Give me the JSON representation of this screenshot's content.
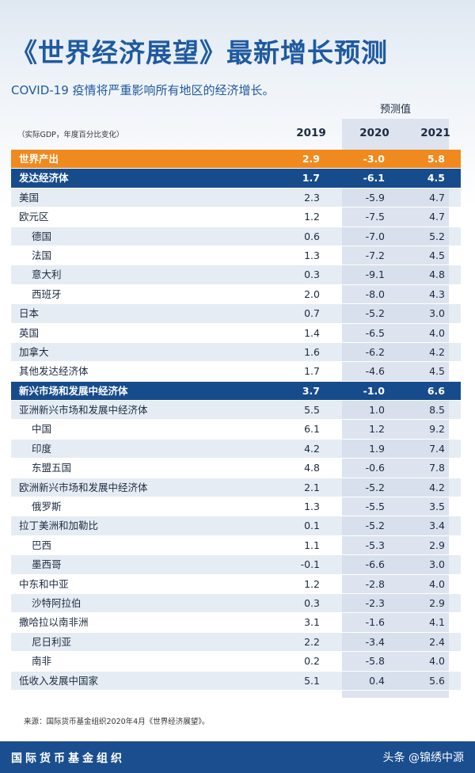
{
  "header": {
    "title": "《世界经济展望》最新增长预测",
    "subtitle": "COVID-19 疫情将严重影响所有地区的经济增长。",
    "forecast_label": "预测值",
    "units": "（实际GDP，年度百分比变化）",
    "years": [
      "2019",
      "2020",
      "2021"
    ]
  },
  "rows": [
    {
      "label": "世界产出",
      "level": 0,
      "style": "orange",
      "values": [
        "2.9",
        "-3.0",
        "5.8"
      ]
    },
    {
      "label": "发达经济体",
      "level": 0,
      "style": "darkblue",
      "values": [
        "1.7",
        "-6.1",
        "4.5"
      ]
    },
    {
      "label": "美国",
      "level": 0,
      "style": "stripe",
      "values": [
        "2.3",
        "-5.9",
        "4.7"
      ]
    },
    {
      "label": "欧元区",
      "level": 0,
      "style": "plain",
      "values": [
        "1.2",
        "-7.5",
        "4.7"
      ]
    },
    {
      "label": "德国",
      "level": 1,
      "style": "stripe",
      "values": [
        "0.6",
        "-7.0",
        "5.2"
      ]
    },
    {
      "label": "法国",
      "level": 1,
      "style": "plain",
      "values": [
        "1.3",
        "-7.2",
        "4.5"
      ]
    },
    {
      "label": "意大利",
      "level": 1,
      "style": "stripe",
      "values": [
        "0.3",
        "-9.1",
        "4.8"
      ]
    },
    {
      "label": "西班牙",
      "level": 1,
      "style": "plain",
      "values": [
        "2.0",
        "-8.0",
        "4.3"
      ]
    },
    {
      "label": "日本",
      "level": 0,
      "style": "stripe",
      "values": [
        "0.7",
        "-5.2",
        "3.0"
      ]
    },
    {
      "label": "英国",
      "level": 0,
      "style": "plain",
      "values": [
        "1.4",
        "-6.5",
        "4.0"
      ]
    },
    {
      "label": "加拿大",
      "level": 0,
      "style": "stripe",
      "values": [
        "1.6",
        "-6.2",
        "4.2"
      ]
    },
    {
      "label": "其他发达经济体",
      "level": 0,
      "style": "plain",
      "values": [
        "1.7",
        "-4.6",
        "4.5"
      ]
    },
    {
      "label": "新兴市场和发展中经济体",
      "level": 0,
      "style": "darkblue",
      "values": [
        "3.7",
        "-1.0",
        "6.6"
      ]
    },
    {
      "label": "亚洲新兴市场和发展中经济体",
      "level": 0,
      "style": "stripe",
      "values": [
        "5.5",
        "1.0",
        "8.5"
      ]
    },
    {
      "label": "中国",
      "level": 1,
      "style": "plain",
      "values": [
        "6.1",
        "1.2",
        "9.2"
      ]
    },
    {
      "label": "印度",
      "level": 1,
      "style": "stripe",
      "values": [
        "4.2",
        "1.9",
        "7.4"
      ]
    },
    {
      "label": "东盟五国",
      "level": 1,
      "style": "plain",
      "values": [
        "4.8",
        "-0.6",
        "7.8"
      ]
    },
    {
      "label": "欧洲新兴市场和发展中经济体",
      "level": 0,
      "style": "stripe",
      "values": [
        "2.1",
        "-5.2",
        "4.2"
      ]
    },
    {
      "label": "俄罗斯",
      "level": 1,
      "style": "plain",
      "values": [
        "1.3",
        "-5.5",
        "3.5"
      ]
    },
    {
      "label": "拉丁美洲和加勒比",
      "level": 0,
      "style": "stripe",
      "values": [
        "0.1",
        "-5.2",
        "3.4"
      ]
    },
    {
      "label": "巴西",
      "level": 1,
      "style": "plain",
      "values": [
        "1.1",
        "-5.3",
        "2.9"
      ]
    },
    {
      "label": "墨西哥",
      "level": 1,
      "style": "stripe",
      "values": [
        "-0.1",
        "-6.6",
        "3.0"
      ]
    },
    {
      "label": "中东和中亚",
      "level": 0,
      "style": "plain",
      "values": [
        "1.2",
        "-2.8",
        "4.0"
      ]
    },
    {
      "label": "沙特阿拉伯",
      "level": 1,
      "style": "stripe",
      "values": [
        "0.3",
        "-2.3",
        "2.9"
      ]
    },
    {
      "label": "撒哈拉以南非洲",
      "level": 0,
      "style": "plain",
      "values": [
        "3.1",
        "-1.6",
        "4.1"
      ]
    },
    {
      "label": "尼日利亚",
      "level": 1,
      "style": "stripe",
      "values": [
        "2.2",
        "-3.4",
        "2.4"
      ]
    },
    {
      "label": "南非",
      "level": 1,
      "style": "plain",
      "values": [
        "0.2",
        "-5.8",
        "4.0"
      ]
    },
    {
      "label": "低收入发展中国家",
      "level": 0,
      "style": "stripe",
      "values": [
        "5.1",
        "0.4",
        "5.6"
      ]
    }
  ],
  "source": "来源：国际货币基金组织2020年4月《世界经济展望》。",
  "footer": {
    "org_name": "国际货币基金组织",
    "credit": "头条 @锦绣中源"
  },
  "colors": {
    "title_blue": "#1f5aa0",
    "orange_row": "#f08a1e",
    "darkblue_row": "#174c8c",
    "footer_bg": "#1a4e8e"
  }
}
